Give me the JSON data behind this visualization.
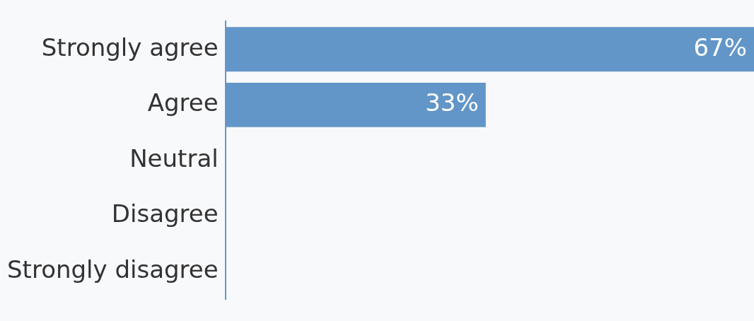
{
  "chart_data": {
    "type": "bar",
    "orientation": "horizontal",
    "categories": [
      "Strongly agree",
      "Agree",
      "Neutral",
      "Disagree",
      "Strongly disagree"
    ],
    "values": [
      67,
      33,
      0,
      0,
      0
    ],
    "color": "#6396c8",
    "value_labels": [
      "67%",
      "33%",
      null,
      null,
      null
    ],
    "xlim": [
      0,
      67
    ],
    "tick_labels": "y",
    "legend": false
  }
}
